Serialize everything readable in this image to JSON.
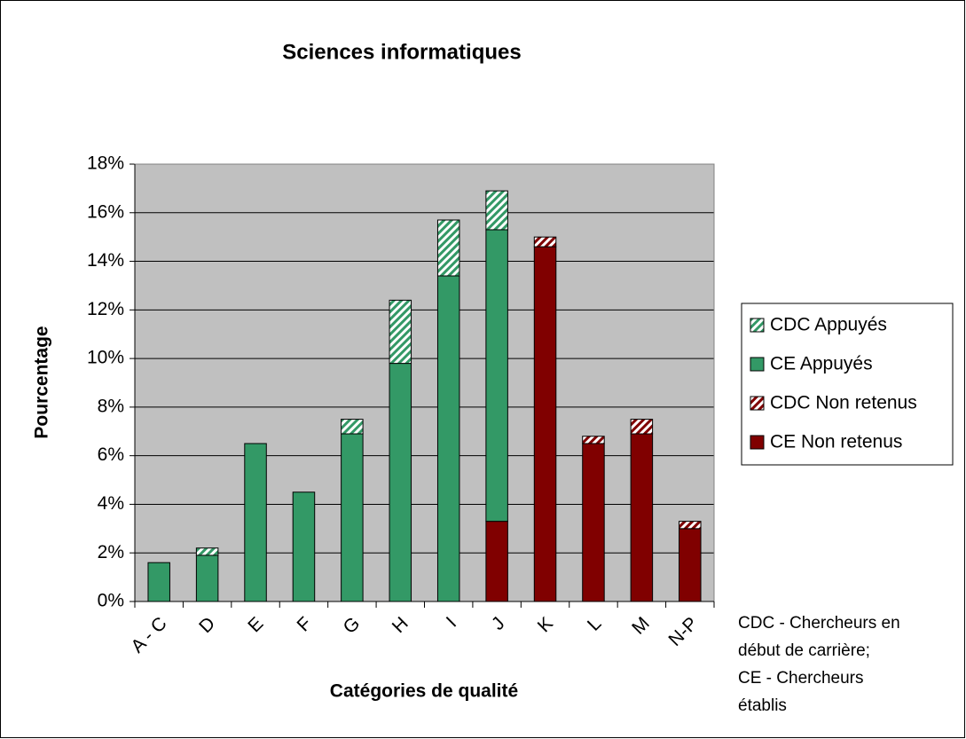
{
  "chart_data": {
    "type": "stacked_bar",
    "title": "Sciences informatiques",
    "x_label": "Catégories de qualité",
    "y_label": "Pourcentage",
    "categories": [
      "A - C",
      "D",
      "E",
      "F",
      "G",
      "H",
      "I",
      "J",
      "K",
      "L",
      "M",
      "N-P"
    ],
    "series": [
      {
        "name": "CE Non retenus",
        "color": "#800000",
        "hatch": false,
        "values": [
          null,
          null,
          null,
          null,
          null,
          null,
          null,
          3.3,
          14.6,
          6.5,
          6.9,
          3.0
        ]
      },
      {
        "name": "CDC Non retenus",
        "color": "#800000",
        "hatch": true,
        "values": [
          null,
          null,
          null,
          null,
          null,
          null,
          null,
          null,
          0.4,
          0.3,
          0.6,
          0.3
        ]
      },
      {
        "name": "CE Appuyés",
        "color": "#339966",
        "hatch": false,
        "values": [
          1.6,
          1.9,
          6.5,
          4.5,
          6.9,
          9.8,
          13.4,
          12.0,
          null,
          null,
          null,
          null
        ]
      },
      {
        "name": "CDC Appuyés",
        "color": "#339966",
        "hatch": true,
        "values": [
          null,
          0.3,
          null,
          null,
          0.6,
          2.6,
          2.3,
          1.6,
          null,
          null,
          null,
          null
        ]
      }
    ],
    "ylim": [
      0,
      18
    ],
    "yticks": [
      {
        "value": 0,
        "label": "0%"
      },
      {
        "value": 2,
        "label": "2%"
      },
      {
        "value": 4,
        "label": "4%"
      },
      {
        "value": 6,
        "label": "6%"
      },
      {
        "value": 8,
        "label": "8%"
      },
      {
        "value": 10,
        "label": "10%"
      },
      {
        "value": 12,
        "label": "12%"
      },
      {
        "value": 14,
        "label": "14%"
      },
      {
        "value": 16,
        "label": "16%"
      },
      {
        "value": 18,
        "label": "18%"
      }
    ],
    "grid": true,
    "plot_background": "#c0c0c0",
    "legend": "right",
    "note": [
      "CDC - Chercheurs en",
      "début de carrière;",
      "CE - Chercheurs",
      "établis"
    ]
  }
}
